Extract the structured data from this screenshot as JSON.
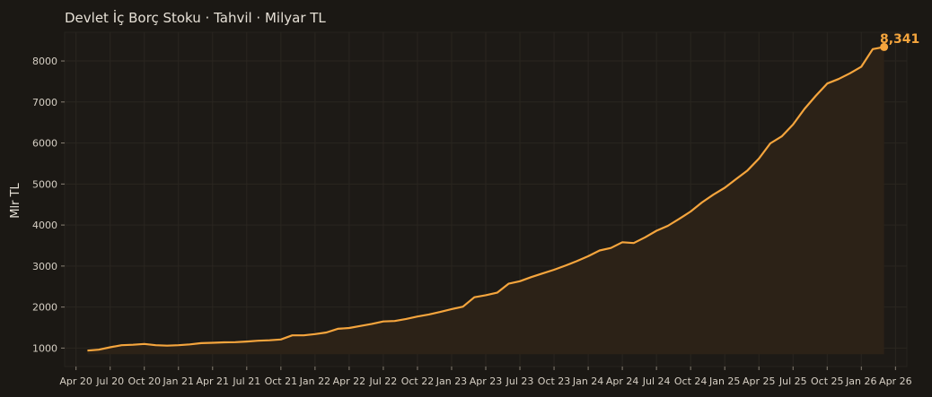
{
  "chart_data": {
    "type": "area",
    "title": "Devlet İç Borç Stoku · Tahvil · Milyar TL",
    "xlabel": "",
    "ylabel": "Mlr TL",
    "x_tick_labels": [
      "Apr 20",
      "Jul 20",
      "Oct 20",
      "Jan 21",
      "Apr 21",
      "Jul 21",
      "Oct 21",
      "Jan 22",
      "Apr 22",
      "Jul 22",
      "Oct 22",
      "Jan 23",
      "Apr 23",
      "Jul 23",
      "Oct 23",
      "Jan 24",
      "Apr 24",
      "Jul 24",
      "Oct 24",
      "Jan 25",
      "Apr 25",
      "Jul 25",
      "Oct 25",
      "Jan 26",
      "Apr 26"
    ],
    "y_ticks": [
      1000,
      2000,
      3000,
      4000,
      5000,
      6000,
      7000,
      8000
    ],
    "ylim": [
      550,
      8700
    ],
    "xlim": [
      "2020-03",
      "2026-05"
    ],
    "grid": true,
    "last_value_label": "8,341",
    "colors": {
      "line": "#f5a53d",
      "fill": "#2c2217",
      "background": "#1b1814",
      "grid": "#2a2620"
    },
    "series": [
      {
        "x": [
          "2020-05",
          "2020-06",
          "2020-07",
          "2020-08",
          "2020-09",
          "2020-10",
          "2020-11",
          "2020-12",
          "2021-01",
          "2021-02",
          "2021-03",
          "2021-04",
          "2021-05",
          "2021-06",
          "2021-07",
          "2021-08",
          "2021-09",
          "2021-10",
          "2021-11",
          "2021-12",
          "2022-01",
          "2022-02",
          "2022-03",
          "2022-04",
          "2022-05",
          "2022-06",
          "2022-07",
          "2022-08",
          "2022-09",
          "2022-10",
          "2022-11",
          "2022-12",
          "2023-01",
          "2023-02",
          "2023-03",
          "2023-04",
          "2023-05",
          "2023-06",
          "2023-07",
          "2023-08",
          "2023-09",
          "2023-10",
          "2023-11",
          "2023-12",
          "2024-01",
          "2024-02",
          "2024-03",
          "2024-04",
          "2024-05",
          "2024-06",
          "2024-07",
          "2024-08",
          "2024-09",
          "2024-10",
          "2024-11",
          "2024-12",
          "2025-01",
          "2025-02",
          "2025-03",
          "2025-04",
          "2025-05",
          "2025-06",
          "2025-07",
          "2025-08",
          "2025-09",
          "2025-10",
          "2025-11",
          "2025-12",
          "2026-01",
          "2026-02",
          "2026-03"
        ],
        "values": [
          940,
          960,
          1020,
          1070,
          1080,
          1100,
          1070,
          1060,
          1070,
          1090,
          1120,
          1130,
          1140,
          1145,
          1160,
          1180,
          1190,
          1210,
          1310,
          1310,
          1340,
          1380,
          1470,
          1490,
          1540,
          1590,
          1650,
          1660,
          1710,
          1770,
          1820,
          1880,
          1950,
          2010,
          2240,
          2290,
          2350,
          2570,
          2630,
          2730,
          2820,
          2910,
          3010,
          3120,
          3240,
          3380,
          3440,
          3580,
          3560,
          3700,
          3860,
          3980,
          4150,
          4330,
          4550,
          4740,
          4910,
          5120,
          5330,
          5620,
          5990,
          6160,
          6450,
          6830,
          7150,
          7450,
          7560,
          7700,
          7860,
          8290,
          8341
        ]
      }
    ]
  }
}
